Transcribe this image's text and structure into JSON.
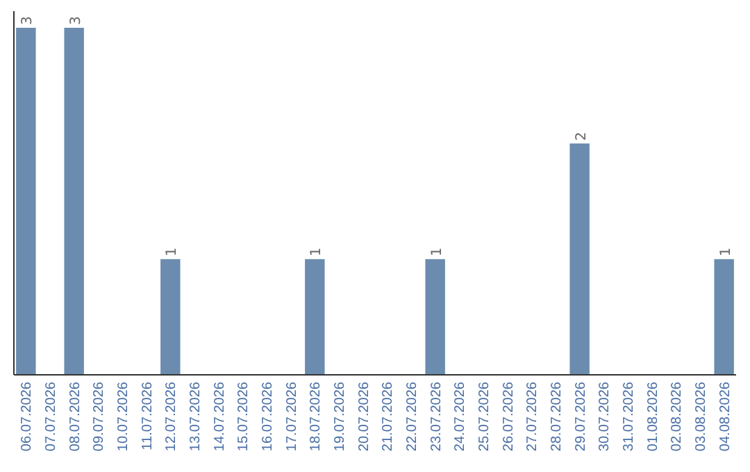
{
  "chart_data": {
    "type": "bar",
    "categories": [
      "06.07.2026",
      "07.07.2026",
      "08.07.2026",
      "09.07.2026",
      "10.07.2026",
      "11.07.2026",
      "12.07.2026",
      "13.07.2026",
      "14.07.2026",
      "15.07.2026",
      "16.07.2026",
      "17.07.2026",
      "18.07.2026",
      "19.07.2026",
      "20.07.2026",
      "21.07.2026",
      "22.07.2026",
      "23.07.2026",
      "24.07.2026",
      "25.07.2026",
      "26.07.2026",
      "27.07.2026",
      "28.07.2026",
      "29.07.2026",
      "30.07.2026",
      "31.07.2026",
      "01.08.2026",
      "02.08.2026",
      "03.08.2026",
      "04.08.2026"
    ],
    "values": [
      3,
      null,
      3,
      null,
      null,
      null,
      1,
      null,
      null,
      null,
      null,
      null,
      1,
      null,
      null,
      null,
      null,
      1,
      null,
      null,
      null,
      null,
      null,
      2,
      null,
      null,
      null,
      null,
      null,
      1
    ],
    "color": "#6b8cae",
    "data_labels": true
  }
}
